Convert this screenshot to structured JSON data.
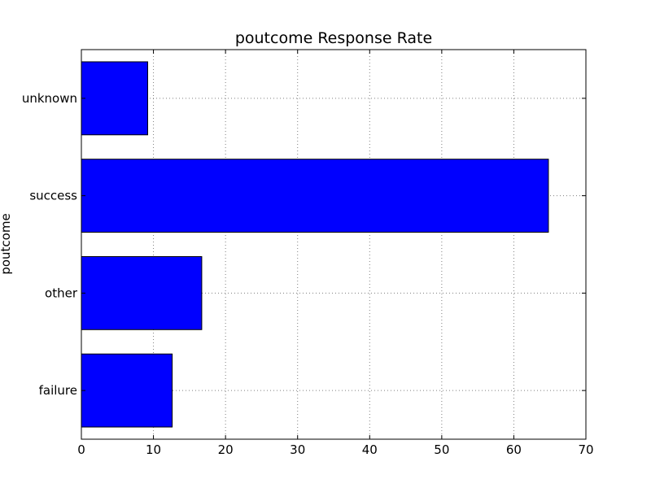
{
  "chart_data": {
    "type": "bar",
    "orientation": "horizontal",
    "title": "poutcome Response Rate",
    "xlabel": "",
    "ylabel": "poutcome",
    "categories": [
      "failure",
      "other",
      "success",
      "unknown"
    ],
    "values": [
      12.6,
      16.7,
      64.8,
      9.2
    ],
    "xlim": [
      0,
      70
    ],
    "xticks": [
      0,
      10,
      20,
      30,
      40,
      50,
      60,
      70
    ],
    "grid": true,
    "legend": "none",
    "colors": {
      "bar": "#0000ff",
      "bar_edge": "#000000",
      "grid": "#7f7f7f",
      "axes": "#000000",
      "background": "#ffffff"
    }
  }
}
